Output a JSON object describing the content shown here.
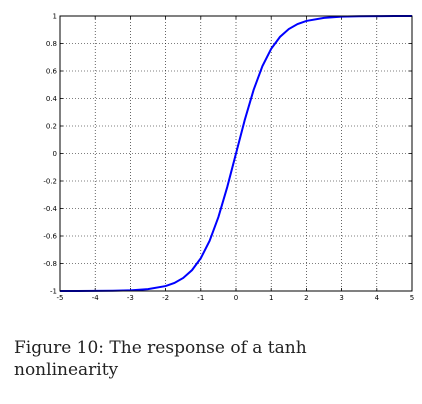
{
  "caption": "Figure 10: The response of a tanh nonlinearity",
  "chart_data": {
    "type": "line",
    "title": "",
    "xlabel": "",
    "ylabel": "",
    "xlim": [
      -5,
      5
    ],
    "ylim": [
      -1,
      1
    ],
    "grid": true,
    "legend": "none",
    "x_ticks": [
      "-5",
      "-4",
      "-3",
      "-2",
      "-1",
      "0",
      "1",
      "2",
      "3",
      "4",
      "5"
    ],
    "y_ticks": [
      "-1",
      "-0.8",
      "-0.6",
      "-0.4",
      "-0.2",
      "0",
      "0.2",
      "0.4",
      "0.6",
      "0.8",
      "1"
    ],
    "series": [
      {
        "color": "#0000ff",
        "x": [
          -5,
          -4.5,
          -4,
          -3.5,
          -3,
          -2.5,
          -2,
          -1.75,
          -1.5,
          -1.25,
          -1,
          -0.75,
          -0.5,
          -0.25,
          0,
          0.25,
          0.5,
          0.75,
          1,
          1.25,
          1.5,
          1.75,
          2,
          2.5,
          3,
          3.5,
          4,
          4.5,
          5
        ],
        "y": [
          -0.9999,
          -0.9998,
          -0.9993,
          -0.9982,
          -0.9951,
          -0.9866,
          -0.964,
          -0.9414,
          -0.9051,
          -0.8483,
          -0.7616,
          -0.6351,
          -0.4621,
          -0.2449,
          0,
          0.2449,
          0.4621,
          0.6351,
          0.7616,
          0.8483,
          0.9051,
          0.9414,
          0.964,
          0.9866,
          0.9951,
          0.9982,
          0.9993,
          0.9998,
          0.9999
        ]
      }
    ]
  }
}
